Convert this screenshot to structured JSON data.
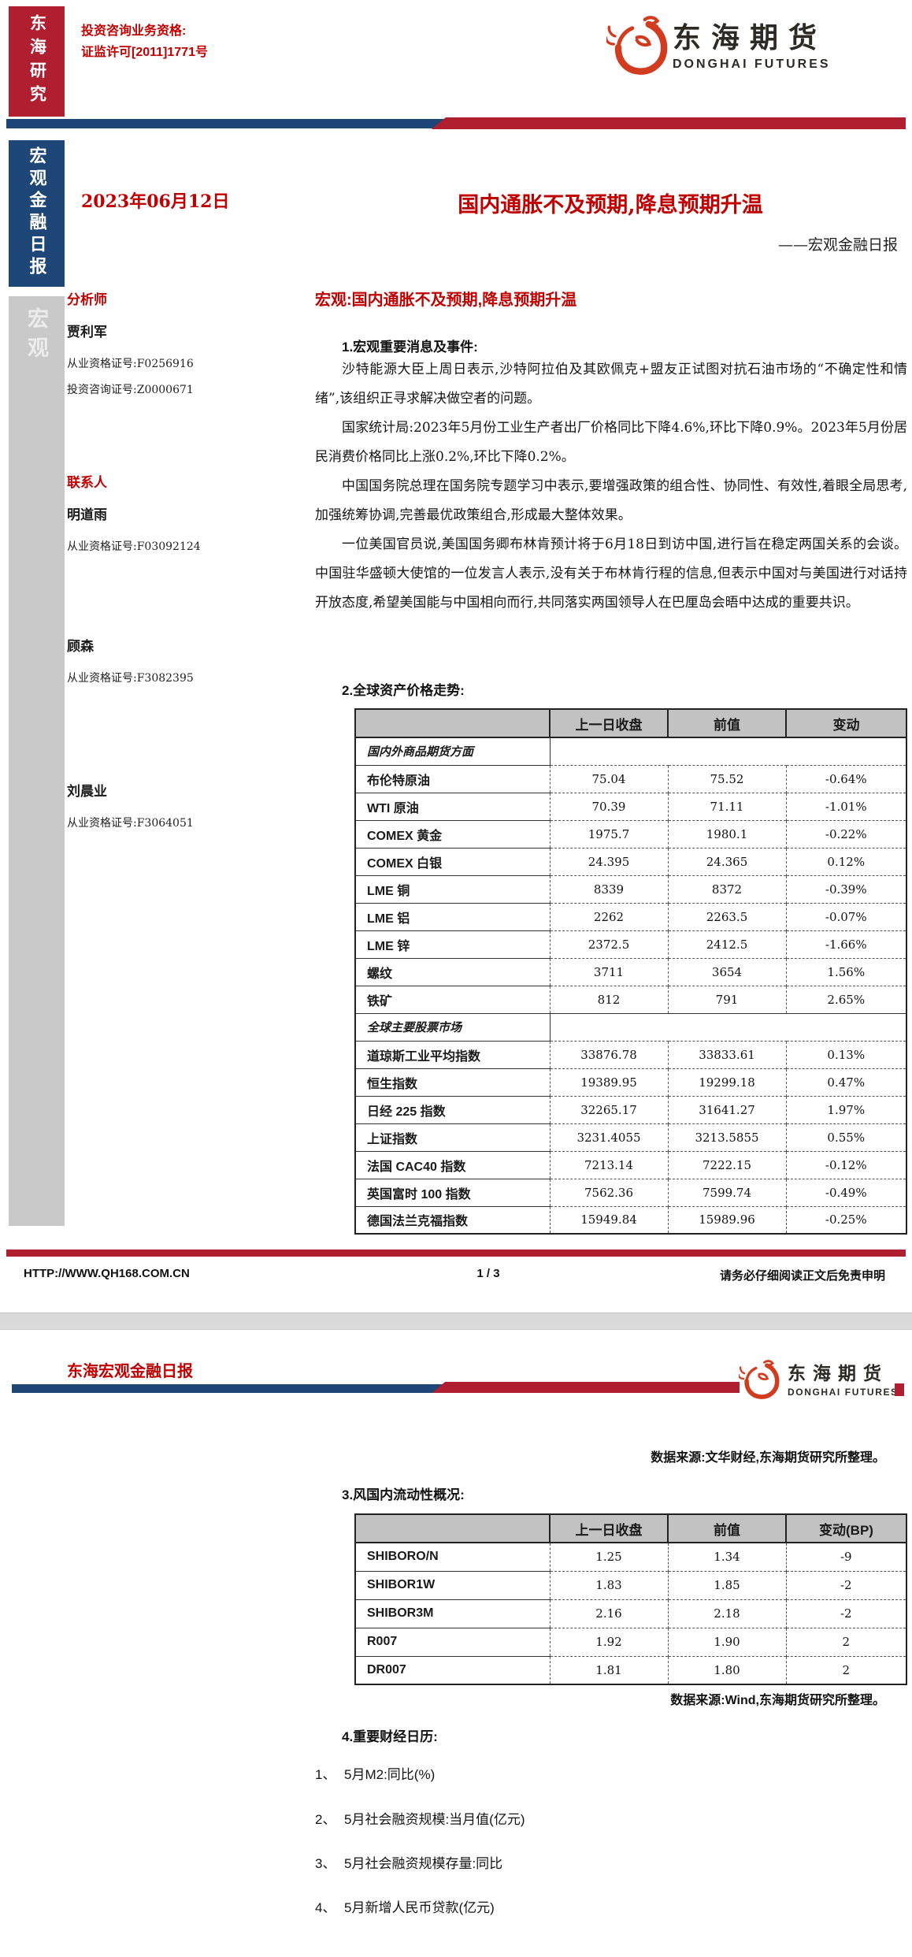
{
  "brand": {
    "research_vertical": "东海研究",
    "logo_cn": "东海期货",
    "logo_en": "DONGHAI FUTURES",
    "red": "#b01f2f",
    "navy": "#1e4677",
    "text_red": "#c00000"
  },
  "page1": {
    "license_line1": "投资咨询业务资格:",
    "license_line2": "证监许可[2011]1771号",
    "sidebar_report_vertical": "宏观金融日报",
    "sidebar_section_vertical": "宏观",
    "date": "2023年06月12日",
    "title": "国内通胀不及预期,降息预期升温",
    "subtitle": "——宏观金融日报",
    "team": [
      {
        "role": "分析师",
        "name": "贾利军",
        "certs": [
          "从业资格证号:F0256916",
          "投资咨询证号:Z0000671"
        ]
      },
      {
        "role": "联系人",
        "name": "明道雨",
        "certs": [
          "从业资格证号:F03092124"
        ]
      },
      {
        "role": "",
        "name": "顾森",
        "certs": [
          "从业资格证号:F3082395"
        ]
      },
      {
        "role": "",
        "name": "刘晨业",
        "certs": [
          "从业资格证号:F3064051"
        ]
      }
    ],
    "section_heading": "宏观:国内通胀不及预期,降息预期升温",
    "h1": "1.宏观重要消息及事件:",
    "paragraphs": [
      "沙特能源大臣上周日表示,沙特阿拉伯及其欧佩克+盟友正试图对抗石油市场的“不确定性和情绪”,该组织正寻求解决做空者的问题。",
      "国家统计局:2023年5月份工业生产者出厂价格同比下降4.6%,环比下降0.9%。2023年5月份居民消费价格同比上涨0.2%,环比下降0.2%。",
      "中国国务院总理在国务院专题学习中表示,要增强政策的组合性、协同性、有效性,着眼全局思考,加强统筹协调,完善最优政策组合,形成最大整体效果。",
      "一位美国官员说,美国国务卿布林肯预计将于6月18日到访中国,进行旨在稳定两国关系的会谈。中国驻华盛顿大使馆的一位发言人表示,没有关于布林肯行程的信息,但表示中国对与美国进行对话持开放态度,希望美国能与中国相向而行,共同落实两国领导人在巴厘岛会晤中达成的重要共识。"
    ],
    "h2": "2.全球资产价格走势:",
    "asset_table": {
      "headers": [
        "",
        "上一日收盘",
        "前值",
        "变动"
      ],
      "rows": [
        {
          "type": "section",
          "label": "国内外商品期货方面"
        },
        {
          "type": "data",
          "cells": [
            "布伦特原油",
            "75.04",
            "75.52",
            "-0.64%"
          ]
        },
        {
          "type": "data",
          "cells": [
            "WTI 原油",
            "70.39",
            "71.11",
            "-1.01%"
          ]
        },
        {
          "type": "data",
          "cells": [
            "COMEX 黄金",
            "1975.7",
            "1980.1",
            "-0.22%"
          ]
        },
        {
          "type": "data",
          "cells": [
            "COMEX 白银",
            "24.395",
            "24.365",
            "0.12%"
          ]
        },
        {
          "type": "data",
          "cells": [
            "LME 铜",
            "8339",
            "8372",
            "-0.39%"
          ]
        },
        {
          "type": "data",
          "cells": [
            "LME 铝",
            "2262",
            "2263.5",
            "-0.07%"
          ]
        },
        {
          "type": "data",
          "cells": [
            "LME 锌",
            "2372.5",
            "2412.5",
            "-1.66%"
          ]
        },
        {
          "type": "data",
          "cells": [
            "螺纹",
            "3711",
            "3654",
            "1.56%"
          ]
        },
        {
          "type": "data",
          "cells": [
            "铁矿",
            "812",
            "791",
            "2.65%"
          ]
        },
        {
          "type": "section",
          "label": "全球主要股票市场"
        },
        {
          "type": "data",
          "cells": [
            "道琼斯工业平均指数",
            "33876.78",
            "33833.61",
            "0.13%"
          ]
        },
        {
          "type": "data",
          "cells": [
            "恒生指数",
            "19389.95",
            "19299.18",
            "0.47%"
          ]
        },
        {
          "type": "data",
          "cells": [
            "日经 225 指数",
            "32265.17",
            "31641.27",
            "1.97%"
          ]
        },
        {
          "type": "data",
          "cells": [
            "上证指数",
            "3231.4055",
            "3213.5855",
            "0.55%"
          ]
        },
        {
          "type": "data",
          "cells": [
            "法国 CAC40 指数",
            "7213.14",
            "7222.15",
            "-0.12%"
          ]
        },
        {
          "type": "data",
          "cells": [
            "英国富时 100 指数",
            "7562.36",
            "7599.74",
            "-0.49%"
          ]
        },
        {
          "type": "data",
          "cells": [
            "德国法兰克福指数",
            "15949.84",
            "15989.96",
            "-0.25%"
          ]
        }
      ]
    },
    "footer": {
      "url": "HTTP://WWW.QH168.COM.CN",
      "page_indicator": "1 / 3",
      "disclaimer": "请务必仔细阅读正文后免责申明"
    }
  },
  "page2": {
    "header_title": "东海宏观金融日报",
    "source_note_assets": "数据来源:文华财经,东海期货研究所整理。",
    "h3": "3.风国内流动性概况:",
    "liquidity_table": {
      "headers": [
        "",
        "上一日收盘",
        "前值",
        "变动(BP)"
      ],
      "rows": [
        {
          "type": "data",
          "cells": [
            "SHIBORO/N",
            "1.25",
            "1.34",
            "-9"
          ]
        },
        {
          "type": "data",
          "cells": [
            "SHIBOR1W",
            "1.83",
            "1.85",
            "-2"
          ]
        },
        {
          "type": "data",
          "cells": [
            "SHIBOR3M",
            "2.16",
            "2.18",
            "-2"
          ]
        },
        {
          "type": "data",
          "cells": [
            "R007",
            "1.92",
            "1.90",
            "2"
          ]
        },
        {
          "type": "data",
          "cells": [
            "DR007",
            "1.81",
            "1.80",
            "2"
          ]
        }
      ]
    },
    "source_note_liquidity": "数据来源:Wind,东海期货研究所整理。",
    "h4": "4.重要财经日历:",
    "calendar": [
      {
        "num": "1、",
        "text": "5月M2:同比(%)"
      },
      {
        "num": "2、",
        "text": "5月社会融资规模:当月值(亿元)"
      },
      {
        "num": "3、",
        "text": "5月社会融资规模存量:同比"
      },
      {
        "num": "4、",
        "text": "5月新增人民币贷款(亿元)"
      }
    ]
  }
}
